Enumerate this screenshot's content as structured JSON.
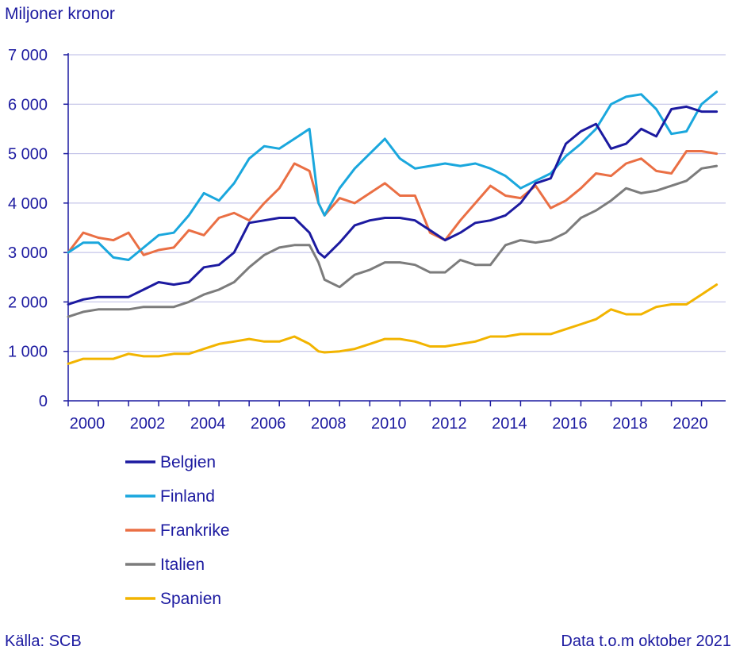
{
  "chart_data": {
    "type": "line",
    "title": "",
    "ylabel": "Miljoner kronor",
    "xlabel": "",
    "ylim": [
      0,
      7000
    ],
    "xlim": [
      2000,
      2021.8
    ],
    "yticks": [
      0,
      1000,
      2000,
      3000,
      4000,
      5000,
      6000,
      7000
    ],
    "ytick_labels": [
      "0",
      "1 000",
      "2 000",
      "3 000",
      "4 000",
      "5 000",
      "6 000",
      "7 000"
    ],
    "xticks": [
      2000,
      2002,
      2004,
      2006,
      2008,
      2010,
      2012,
      2014,
      2016,
      2018,
      2020
    ],
    "xtick_labels": [
      "2000",
      "2002",
      "2004",
      "2006",
      "2008",
      "2010",
      "2012",
      "2014",
      "2016",
      "2018",
      "2020"
    ],
    "grid": true,
    "legend_position": "bottom-left",
    "series": [
      {
        "name": "Belgien",
        "color": "#1c1aa0",
        "x": [
          2000,
          2000.5,
          2001,
          2001.5,
          2002,
          2002.5,
          2003,
          2003.5,
          2004,
          2004.5,
          2005,
          2005.5,
          2006,
          2006.5,
          2007,
          2007.5,
          2008,
          2008.3,
          2008.5,
          2009,
          2009.5,
          2010,
          2010.5,
          2011,
          2011.5,
          2012,
          2012.5,
          2013,
          2013.5,
          2014,
          2014.5,
          2015,
          2015.5,
          2016,
          2016.5,
          2017,
          2017.5,
          2018,
          2018.5,
          2019,
          2019.5,
          2020,
          2020.5,
          2021,
          2021.5
        ],
        "values": [
          1950,
          2050,
          2100,
          2100,
          2100,
          2250,
          2400,
          2350,
          2400,
          2700,
          2750,
          3000,
          3600,
          3650,
          3700,
          3700,
          3400,
          3000,
          2900,
          3200,
          3550,
          3650,
          3700,
          3700,
          3650,
          3450,
          3250,
          3400,
          3600,
          3650,
          3750,
          4000,
          4400,
          4500,
          5200,
          5450,
          5600,
          5100,
          5200,
          5500,
          5350,
          5900,
          5950,
          5850,
          5850
        ]
      },
      {
        "name": "Finland",
        "color": "#1aa7dd",
        "x": [
          2000,
          2000.5,
          2001,
          2001.5,
          2002,
          2002.5,
          2003,
          2003.5,
          2004,
          2004.5,
          2005,
          2005.5,
          2006,
          2006.5,
          2007,
          2007.5,
          2008,
          2008.3,
          2008.5,
          2009,
          2009.5,
          2010,
          2010.5,
          2011,
          2011.5,
          2012,
          2012.5,
          2013,
          2013.5,
          2014,
          2014.5,
          2015,
          2015.5,
          2016,
          2016.5,
          2017,
          2017.5,
          2018,
          2018.5,
          2019,
          2019.5,
          2020,
          2020.5,
          2021,
          2021.5
        ],
        "values": [
          3000,
          3200,
          3200,
          2900,
          2850,
          3100,
          3350,
          3400,
          3750,
          4200,
          4050,
          4400,
          4900,
          5150,
          5100,
          5300,
          5500,
          4000,
          3750,
          4300,
          4700,
          5000,
          5300,
          4900,
          4700,
          4750,
          4800,
          4750,
          4800,
          4700,
          4550,
          4300,
          4450,
          4600,
          4950,
          5200,
          5500,
          6000,
          6150,
          6200,
          5900,
          5400,
          5450,
          6000,
          6250
        ]
      },
      {
        "name": "Frankrike",
        "color": "#ea6f44",
        "x": [
          2000,
          2000.5,
          2001,
          2001.5,
          2002,
          2002.5,
          2003,
          2003.5,
          2004,
          2004.5,
          2005,
          2005.5,
          2006,
          2006.5,
          2007,
          2007.5,
          2008,
          2008.3,
          2008.5,
          2009,
          2009.5,
          2010,
          2010.5,
          2011,
          2011.5,
          2012,
          2012.5,
          2013,
          2013.5,
          2014,
          2014.5,
          2015,
          2015.5,
          2016,
          2016.5,
          2017,
          2017.5,
          2018,
          2018.5,
          2019,
          2019.5,
          2020,
          2020.5,
          2021,
          2021.5
        ],
        "values": [
          3000,
          3400,
          3300,
          3250,
          3400,
          2950,
          3050,
          3100,
          3450,
          3350,
          3700,
          3800,
          3650,
          4000,
          4300,
          4800,
          4650,
          4000,
          3750,
          4100,
          4000,
          4200,
          4400,
          4150,
          4150,
          3400,
          3250,
          3650,
          4000,
          4350,
          4150,
          4100,
          4350,
          3900,
          4050,
          4300,
          4600,
          4550,
          4800,
          4900,
          4650,
          4600,
          5050,
          5050,
          5000
        ]
      },
      {
        "name": "Italien",
        "color": "#7c7c7c",
        "x": [
          2000,
          2000.5,
          2001,
          2001.5,
          2002,
          2002.5,
          2003,
          2003.5,
          2004,
          2004.5,
          2005,
          2005.5,
          2006,
          2006.5,
          2007,
          2007.5,
          2008,
          2008.3,
          2008.5,
          2009,
          2009.5,
          2010,
          2010.5,
          2011,
          2011.5,
          2012,
          2012.5,
          2013,
          2013.5,
          2014,
          2014.5,
          2015,
          2015.5,
          2016,
          2016.5,
          2017,
          2017.5,
          2018,
          2018.5,
          2019,
          2019.5,
          2020,
          2020.5,
          2021,
          2021.5
        ],
        "values": [
          1700,
          1800,
          1850,
          1850,
          1850,
          1900,
          1900,
          1900,
          2000,
          2150,
          2250,
          2400,
          2700,
          2950,
          3100,
          3150,
          3150,
          2800,
          2450,
          2300,
          2550,
          2650,
          2800,
          2800,
          2750,
          2600,
          2600,
          2850,
          2750,
          2750,
          3150,
          3250,
          3200,
          3250,
          3400,
          3700,
          3850,
          4050,
          4300,
          4200,
          4250,
          4350,
          4450,
          4700,
          4750
        ]
      },
      {
        "name": "Spanien",
        "color": "#f2b400",
        "x": [
          2000,
          2000.5,
          2001,
          2001.5,
          2002,
          2002.5,
          2003,
          2003.5,
          2004,
          2004.5,
          2005,
          2005.5,
          2006,
          2006.5,
          2007,
          2007.5,
          2008,
          2008.3,
          2008.5,
          2009,
          2009.5,
          2010,
          2010.5,
          2011,
          2011.5,
          2012,
          2012.5,
          2013,
          2013.5,
          2014,
          2014.5,
          2015,
          2015.5,
          2016,
          2016.5,
          2017,
          2017.5,
          2018,
          2018.5,
          2019,
          2019.5,
          2020,
          2020.5,
          2021,
          2021.5
        ],
        "values": [
          750,
          850,
          850,
          850,
          950,
          900,
          900,
          950,
          950,
          1050,
          1150,
          1200,
          1250,
          1200,
          1200,
          1300,
          1150,
          1000,
          980,
          1000,
          1050,
          1150,
          1250,
          1250,
          1200,
          1100,
          1100,
          1150,
          1200,
          1300,
          1300,
          1350,
          1350,
          1350,
          1450,
          1550,
          1650,
          1850,
          1750,
          1750,
          1900,
          1950,
          1950,
          2150,
          2350
        ]
      }
    ]
  },
  "footer": {
    "source": "Källa: SCB",
    "note": "Data t.o.m oktober 2021"
  }
}
